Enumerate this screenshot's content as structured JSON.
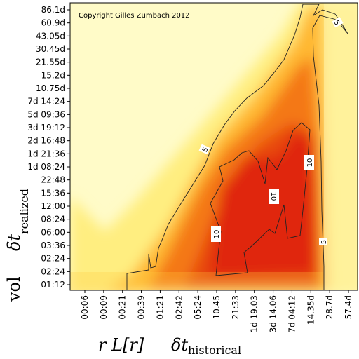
{
  "chart_data": {
    "type": "heatmap",
    "copyright": "Copyright Gilles Zumbach 2012",
    "xlabel_left": "r L[r]",
    "xlabel_right_main": "δt",
    "xlabel_right_sub": "historical",
    "ylabel_left": "vol",
    "ylabel_right_main": "δt",
    "ylabel_right_sub": "realized",
    "x_ticks": [
      "00:06",
      "00:09",
      "00:21",
      "00:39",
      "01:21",
      "02:42",
      "05:24",
      "10.45",
      "21:33",
      "1d 19.03",
      "3d 14.06",
      "7d 04:12",
      "14.35d",
      "28.7d",
      "57.4d"
    ],
    "y_ticks": [
      "86.1d",
      "60.9d",
      "43.05d",
      "30.45d",
      "21.55d",
      "15.2d",
      "10.75d",
      "7d 14:24",
      "5d 09:36",
      "3d 19:12",
      "2d 16:48",
      "1d 21:36",
      "1d 08:24",
      "22:48",
      "15:36",
      "12:00",
      "08:24",
      "06:00",
      "03:36",
      "02:24",
      "02:24",
      "01:12"
    ],
    "contour_levels": [
      "5",
      "10"
    ],
    "contour_labels": [
      "5",
      "5",
      "10",
      "10",
      "10",
      "5"
    ],
    "colormap": [
      "#ffffe8",
      "#fff4b0",
      "#ffd020",
      "#f07010",
      "#e02000"
    ]
  }
}
